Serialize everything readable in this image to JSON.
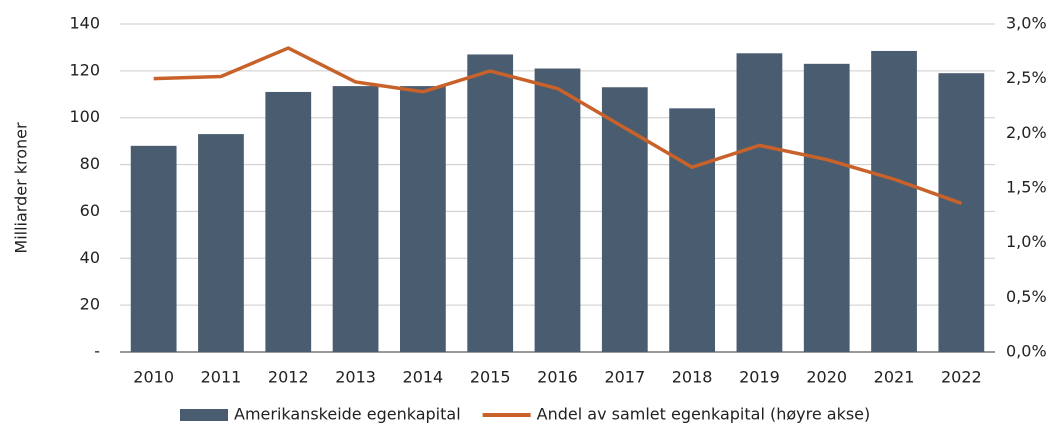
{
  "chart_data": {
    "type": "bar",
    "y_label": "Milliarder kroner",
    "categories": [
      "2010",
      "2011",
      "2012",
      "2013",
      "2014",
      "2015",
      "2016",
      "2017",
      "2018",
      "2019",
      "2020",
      "2021",
      "2022"
    ],
    "series": [
      {
        "name": "Amerikanskeide egenkapital",
        "type": "bar",
        "color": "#4a5d70",
        "values": [
          88,
          93,
          111,
          113.5,
          113.5,
          127,
          121,
          113,
          104,
          127.5,
          123,
          128.5,
          119
        ]
      },
      {
        "name": "Andel av samlet egenkapital (høyre akse)",
        "type": "line",
        "axis": "y2",
        "color": "#c8622a",
        "values": [
          2.5,
          2.52,
          2.78,
          2.47,
          2.38,
          2.57,
          2.41,
          2.05,
          1.69,
          1.89,
          1.76,
          1.58,
          1.36
        ]
      }
    ],
    "ylim": [
      0,
      140
    ],
    "yticks": [
      {
        "value": 0,
        "label": "-"
      },
      20,
      40,
      60,
      80,
      100,
      120,
      140
    ],
    "y2lim": [
      0,
      3
    ],
    "y2ticks": [
      {
        "value": 0,
        "label": "0,0%"
      },
      {
        "value": 0.5,
        "label": "0,5%"
      },
      {
        "value": 1,
        "label": "1,0%"
      },
      {
        "value": 1.5,
        "label": "1,5%"
      },
      {
        "value": 2,
        "label": "2,0%"
      },
      {
        "value": 2.5,
        "label": "2,5%"
      },
      {
        "value": 3,
        "label": "3,0%"
      }
    ],
    "grid": true
  }
}
